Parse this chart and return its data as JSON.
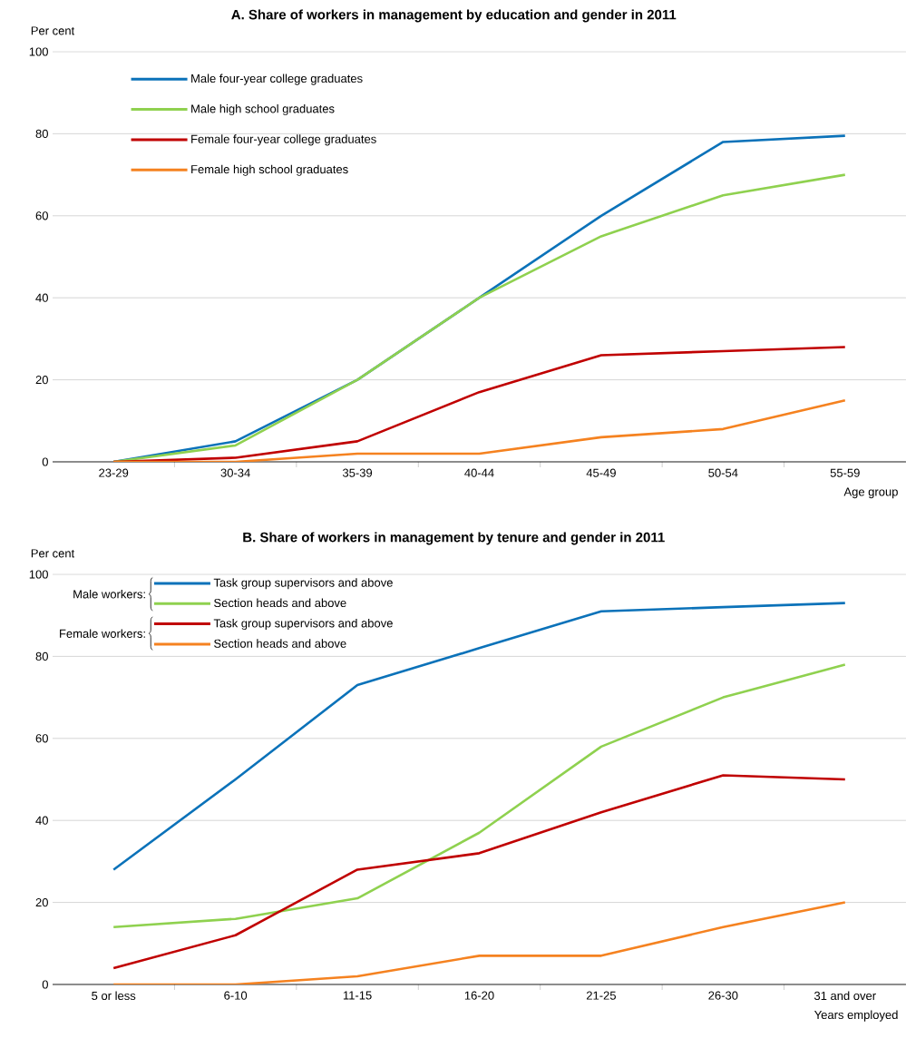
{
  "chart_data": [
    {
      "type": "line",
      "title": "A. Share of workers in management by education and gender in 2011",
      "xlabel": "Age group",
      "ylabel": "Per cent",
      "categories": [
        "23-29",
        "30-34",
        "35-39",
        "40-44",
        "45-49",
        "50-54",
        "55-59"
      ],
      "series": [
        {
          "name": "Male four-year college graduates",
          "color": "#0b72b9",
          "values": [
            0,
            5,
            20,
            40,
            60,
            78,
            79.5
          ]
        },
        {
          "name": "Male high school graduates",
          "color": "#8fd14f",
          "values": [
            0,
            4,
            20,
            40,
            55,
            65,
            70
          ]
        },
        {
          "name": "Female four-year college graduates",
          "color": "#c00000",
          "values": [
            0,
            1,
            5,
            17,
            26,
            27,
            28
          ]
        },
        {
          "name": "Female high school graduates",
          "color": "#f58220",
          "values": [
            0,
            0,
            2,
            2,
            6,
            8,
            15
          ]
        }
      ],
      "ylim": [
        0,
        100
      ],
      "yticks": [
        0,
        20,
        40,
        60,
        80,
        100
      ],
      "grid": "y",
      "legend": "top left"
    },
    {
      "type": "line",
      "title": "B. Share of workers in management by tenure and gender in 2011",
      "xlabel": "Years employed",
      "ylabel": "Per cent",
      "categories": [
        "5 or less",
        "6-10",
        "11-15",
        "16-20",
        "21-25",
        "26-30",
        "31 and over"
      ],
      "series": [
        {
          "name": "Task group supervisors and above",
          "color": "#0b72b9",
          "values": [
            28,
            50,
            73,
            82,
            91,
            92,
            93
          ]
        },
        {
          "name": "Section heads and above",
          "color": "#8fd14f",
          "values": [
            14,
            16,
            21,
            37,
            58,
            70,
            78
          ]
        },
        {
          "name": "Task group supervisors and above",
          "color": "#c00000",
          "values": [
            4,
            12,
            28,
            32,
            42,
            51,
            50
          ]
        },
        {
          "name": "Section heads and above",
          "color": "#f58220",
          "values": [
            0,
            0,
            2,
            7,
            7,
            14,
            20
          ]
        }
      ],
      "ylim": [
        0,
        100
      ],
      "yticks": [
        0,
        20,
        40,
        60,
        80,
        100
      ],
      "grid": "y",
      "legend": "top left",
      "annotations": [
        "Male workers:",
        "Female workers:"
      ]
    }
  ]
}
